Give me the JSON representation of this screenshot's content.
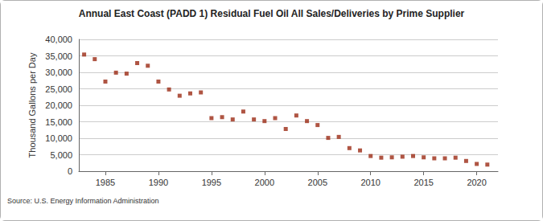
{
  "chart_data": {
    "type": "scatter",
    "title": "Annual East Coast (PADD 1) Residual Fuel Oil All Sales/Deliveries by Prime Supplier",
    "y_label": "Thousand Gallons per Day",
    "source": "Source: U.S. Energy Information Administration",
    "x": [
      1983,
      1984,
      1985,
      1986,
      1987,
      1988,
      1989,
      1990,
      1991,
      1992,
      1993,
      1994,
      1995,
      1996,
      1997,
      1998,
      1999,
      2000,
      2001,
      2002,
      2003,
      2004,
      2005,
      2006,
      2007,
      2008,
      2009,
      2010,
      2011,
      2012,
      2013,
      2014,
      2015,
      2016,
      2017,
      2018,
      2019,
      2020,
      2021
    ],
    "values": [
      35400,
      34000,
      27200,
      29900,
      29600,
      32800,
      32000,
      27200,
      24800,
      22900,
      23600,
      23900,
      16100,
      16400,
      15700,
      18100,
      15700,
      15200,
      16100,
      12800,
      16900,
      15200,
      14000,
      10100,
      10400,
      7000,
      6300,
      4600,
      4100,
      4200,
      4400,
      4600,
      4200,
      3900,
      3900,
      4100,
      3100,
      2200,
      2000
    ],
    "color": "#9b2a14",
    "marker": "square",
    "xlim": [
      1982.5,
      2022
    ],
    "xticks": [
      1985,
      1990,
      1995,
      2000,
      2005,
      2010,
      2015,
      2020
    ],
    "ylim": [
      0,
      40000
    ],
    "yticks": [
      0,
      {
        "value": 5000,
        "label": "5,000"
      },
      {
        "value": 10000,
        "label": "10,000"
      },
      {
        "value": 15000,
        "label": "15,000"
      },
      {
        "value": 20000,
        "label": "20,000"
      },
      {
        "value": 25000,
        "label": "25,000"
      },
      {
        "value": 30000,
        "label": "30,000"
      },
      {
        "value": 35000,
        "label": "35,000"
      },
      {
        "value": 40000,
        "label": "40,000"
      }
    ],
    "grid": true
  }
}
